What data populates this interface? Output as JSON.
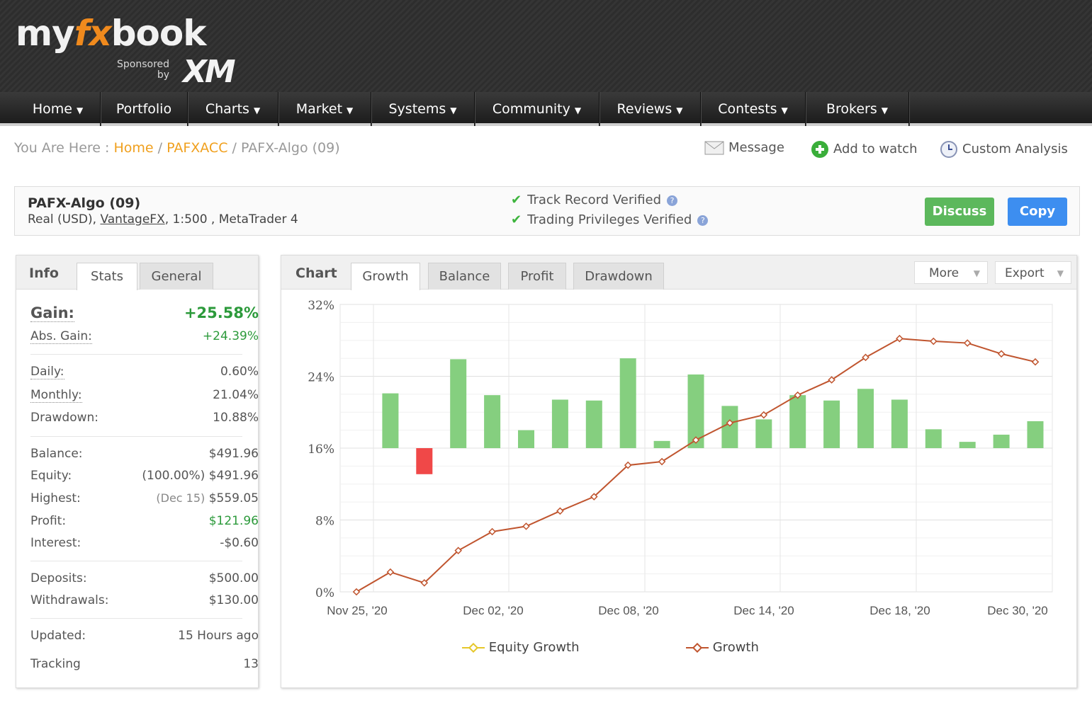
{
  "brand": {
    "logo_pre": "my",
    "logo_fx": "fx",
    "logo_post": "book",
    "sponsored_line1": "Sponsored",
    "sponsored_line2": "by",
    "sponsor": "XM"
  },
  "nav": [
    {
      "label": "Home",
      "caret": true
    },
    {
      "label": "Portfolio",
      "caret": false
    },
    {
      "label": "Charts",
      "caret": true
    },
    {
      "label": "Market",
      "caret": true
    },
    {
      "label": "Systems",
      "caret": true
    },
    {
      "label": "Community",
      "caret": true
    },
    {
      "label": "Reviews",
      "caret": true
    },
    {
      "label": "Contests",
      "caret": true
    },
    {
      "label": "Brokers",
      "caret": true
    }
  ],
  "breadcrumb": {
    "prefix": "You Are Here :",
    "home": "Home",
    "sep": "/",
    "account": "PAFXACC",
    "current": "PAFX-Algo (09)"
  },
  "actions": {
    "message": "Message",
    "watch": "Add to watch",
    "analysis": "Custom Analysis"
  },
  "account": {
    "title": "PAFX-Algo (09)",
    "type": "Real (USD),",
    "broker": "VantageFX",
    "details": ", 1:500 , MetaTrader 4",
    "verified1": "Track Record Verified",
    "verified2": "Trading Privileges Verified",
    "discuss": "Discuss",
    "copy": "Copy"
  },
  "info_tabs": {
    "label": "Info",
    "stats": "Stats",
    "general": "General"
  },
  "info": {
    "gain_k": "Gain:",
    "gain_v": "+25.58%",
    "abs_k": "Abs. Gain:",
    "abs_v": "+24.39%",
    "daily_k": "Daily:",
    "daily_v": "0.60%",
    "monthly_k": "Monthly:",
    "monthly_v": "21.04%",
    "dd_k": "Drawdown:",
    "dd_v": "10.88%",
    "balance_k": "Balance:",
    "balance_v": "$491.96",
    "equity_k": "Equity:",
    "equity_pct": "(100.00%)",
    "equity_v": "$491.96",
    "highest_k": "Highest:",
    "highest_date": "(Dec 15)",
    "highest_v": "$559.05",
    "profit_k": "Profit:",
    "profit_v": "$121.96",
    "interest_k": "Interest:",
    "interest_v": "-$0.60",
    "deposits_k": "Deposits:",
    "deposits_v": "$500.00",
    "withdrawals_k": "Withdrawals:",
    "withdrawals_v": "$130.00",
    "updated_k": "Updated:",
    "updated_v": "15 Hours ago",
    "tracking_k": "Tracking",
    "tracking_v": "13"
  },
  "chart_tabs": {
    "label": "Chart",
    "growth": "Growth",
    "balance": "Balance",
    "profit": "Profit",
    "drawdown": "Drawdown",
    "more": "More",
    "export": "Export"
  },
  "colors": {
    "bar_pos": "#85cf7f",
    "bar_neg": "#f04848",
    "line": "#c0552f",
    "equity": "#e6c72a"
  },
  "chart_data": {
    "type": "bar+line",
    "ylim": [
      0,
      32
    ],
    "yticks": [
      "0%",
      "8%",
      "16%",
      "24%",
      "32%"
    ],
    "xticks": [
      "Nov 25, '20",
      "Dec 02, '20",
      "Dec 08, '20",
      "Dec 14, '20",
      "Dec 18, '20",
      "Dec 30, '20"
    ],
    "bars": [
      0,
      6.1,
      -2.9,
      9.9,
      5.9,
      2.0,
      5.4,
      5.3,
      10.0,
      0.8,
      8.2,
      4.7,
      3.2,
      5.9,
      5.3,
      6.6,
      5.4,
      2.1,
      0.7,
      1.5,
      3.0
    ],
    "series": [
      {
        "name": "Equity Growth",
        "values": []
      },
      {
        "name": "Growth",
        "values": [
          0,
          2.2,
          1.0,
          4.6,
          6.7,
          7.3,
          9.0,
          10.6,
          14.1,
          14.5,
          16.9,
          18.8,
          19.7,
          21.9,
          23.6,
          26.1,
          28.2,
          27.9,
          27.7,
          26.5,
          25.6
        ]
      }
    ]
  }
}
